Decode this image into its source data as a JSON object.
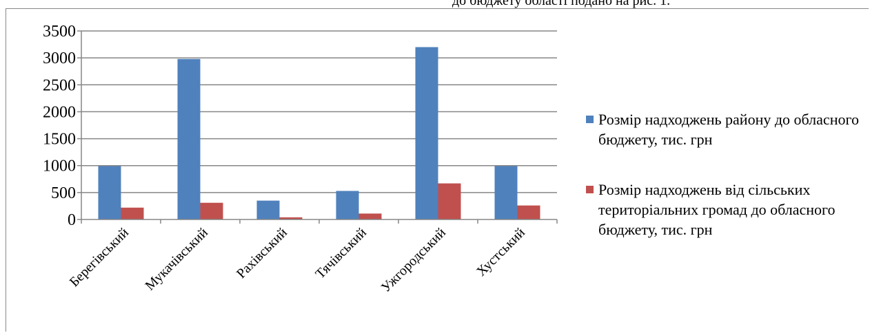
{
  "page": {
    "top_text": "до бюджету області подано на рис. 1."
  },
  "chart_data": {
    "type": "bar",
    "categories": [
      "Берегівський",
      "Мукачівський",
      "Рахівський",
      "Тячівський",
      "Ужгородський",
      "Хустський"
    ],
    "series": [
      {
        "name": "Розмір надходжень району до обласного бюджету, тис. грн",
        "color": "#4F81BD",
        "values": [
          990,
          2980,
          350,
          530,
          3200,
          990
        ]
      },
      {
        "name": "Розмір надходжень від сільських територіальних громад до обласного бюджету, тис. грн",
        "color": "#C0504D",
        "values": [
          220,
          310,
          40,
          110,
          670,
          260
        ]
      }
    ],
    "ylim": [
      0,
      3500
    ],
    "yticks": [
      0,
      500,
      1000,
      1500,
      2000,
      2500,
      3000,
      3500
    ],
    "grid": true,
    "legend_position": "right"
  }
}
